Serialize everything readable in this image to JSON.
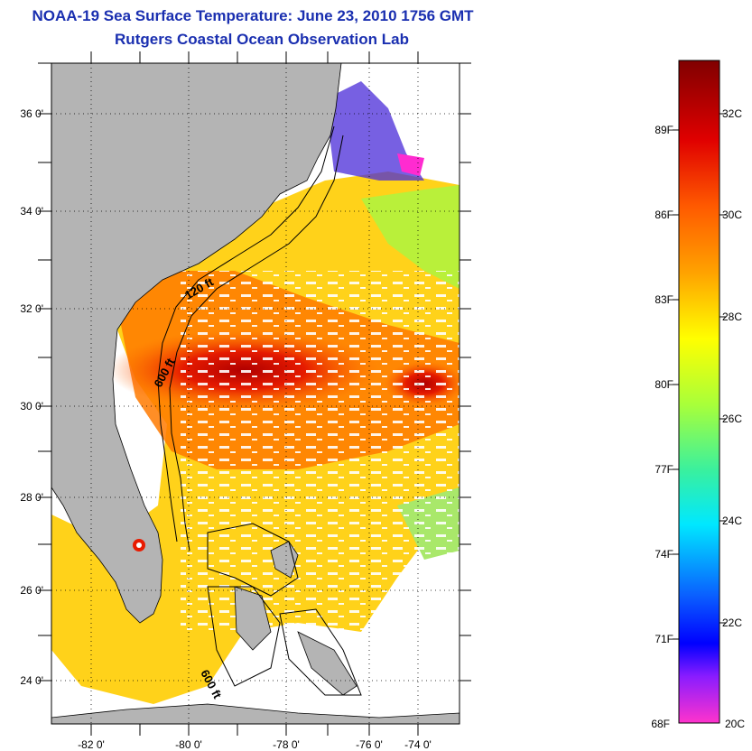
{
  "header": {
    "title": "NOAA-19 Sea Surface Temperature:  June 23, 2010 1756 GMT",
    "subtitle": "Rutgers Coastal Ocean Observation Lab"
  },
  "map": {
    "lat_labels": [
      "36 0'",
      "34 0'",
      "32 0'",
      "30 0'",
      "28 0'",
      "26 0'",
      "24 0'"
    ],
    "lon_labels": [
      "-82 0'",
      "-80 0'",
      "-78 0'",
      "-76 0'",
      "-74 0'"
    ],
    "lat_range": [
      23,
      37.1
    ],
    "lon_range": [
      -83.0,
      -72.9
    ],
    "contours": [
      "120 ft",
      "600 ft",
      "600 ft"
    ],
    "colors": {
      "land": "#b4b4b4",
      "coast": "#000000",
      "grid": "#000000"
    }
  },
  "colorbar": {
    "fahrenheit_labels": [
      "89F",
      "86F",
      "83F",
      "80F",
      "77F",
      "74F",
      "71F",
      "68F"
    ],
    "celsius_labels": [
      "32C",
      "30C",
      "28C",
      "26C",
      "24C",
      "22C",
      "20C"
    ],
    "range_c": [
      20,
      33.2
    ]
  }
}
